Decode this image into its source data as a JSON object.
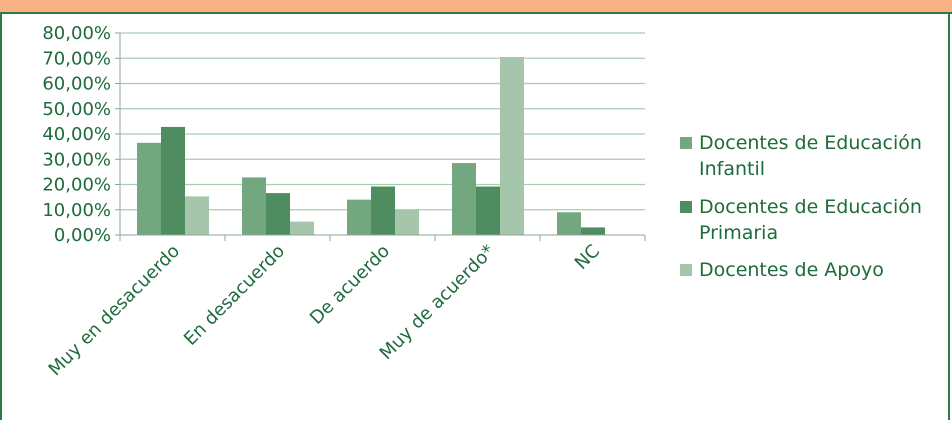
{
  "colors": {
    "frame": "#2e7a46",
    "top_strip": "#f7b183",
    "grid": "#a9cdb1",
    "axis": "#8aa898",
    "text": "#1e6b3c",
    "series": [
      "#73a77f",
      "#4f8c60",
      "#a5c6aa"
    ]
  },
  "chart_data": {
    "type": "bar",
    "title": "",
    "xlabel": "",
    "ylabel": "",
    "ylim": [
      0,
      80
    ],
    "y_ticks": [
      "0,00%",
      "10,00%",
      "20,00%",
      "30,00%",
      "40,00%",
      "50,00%",
      "60,00%",
      "70,00%",
      "80,00%"
    ],
    "grid": true,
    "legend_position": "right",
    "categories": [
      "Muy en desacuerdo",
      "En desacuerdo",
      "De acuerdo",
      "Muy de acuerdo*",
      "NC"
    ],
    "series": [
      {
        "name": "Docentes de Educación Infantil",
        "legend_lines": [
          "Docentes de Educación",
          "Infantil"
        ],
        "values": [
          36.5,
          22.8,
          14.0,
          28.5,
          9.0
        ]
      },
      {
        "name": "Docentes de Educación Primaria",
        "legend_lines": [
          "Docentes de Educación",
          "Primaria"
        ],
        "values": [
          42.8,
          16.6,
          19.2,
          19.2,
          3.0
        ]
      },
      {
        "name": "Docentes de Apoyo",
        "legend_lines": [
          "Docentes de Apoyo"
        ],
        "values": [
          15.3,
          5.3,
          10.0,
          70.5,
          0
        ]
      }
    ]
  }
}
